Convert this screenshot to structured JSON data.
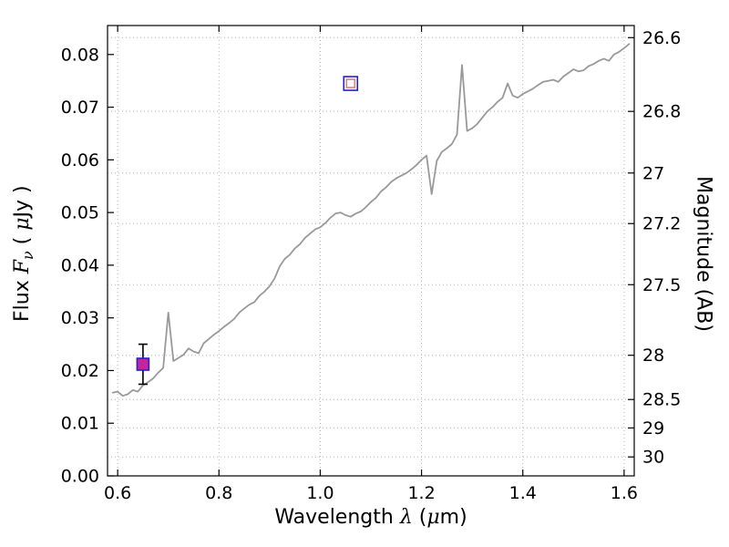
{
  "chart_data": {
    "type": "line",
    "title": "",
    "xlabel_text": "Wavelength λ (μm)",
    "ylabel_left_text": "Flux Fν ( μJy )",
    "ylabel_right_text": "Magnitude (AB)",
    "labels": {
      "xlabel": {
        "t1": "Wavelength ",
        "t2": "λ",
        "t3": " (",
        "t4": "μ",
        "t5": "m)"
      },
      "ylabel": {
        "t1": "Flux ",
        "t2": "F",
        "t3": "ν",
        "t4": " ( ",
        "t5": "μ",
        "t6": "Jy )"
      },
      "ylabel_right": "Magnitude (AB)"
    },
    "xlim": [
      0.58,
      1.62
    ],
    "ylim": [
      0,
      0.0855
    ],
    "grid": true,
    "legend": "none",
    "x_ticks": [
      0.6,
      0.8,
      1.0,
      1.2,
      1.4,
      1.6
    ],
    "x_tick_labels": [
      "0.6",
      "0.8",
      "1.0",
      "1.2",
      "1.4",
      "1.6"
    ],
    "left_ticks": [
      0.0,
      0.01,
      0.02,
      0.03,
      0.04,
      0.05,
      0.06,
      0.07,
      0.08
    ],
    "left_tick_labels": [
      "0.00",
      "0.01",
      "0.02",
      "0.03",
      "0.04",
      "0.05",
      "0.06",
      "0.07",
      "0.08"
    ],
    "right_ticks": [
      {
        "label": "26.6",
        "mag": 26.6,
        "flux": 0.0832
      },
      {
        "label": "26.8",
        "mag": 26.8,
        "flux": 0.0692
      },
      {
        "label": "27",
        "mag": 27.0,
        "flux": 0.0575
      },
      {
        "label": "27.2",
        "mag": 27.2,
        "flux": 0.0479
      },
      {
        "label": "27.5",
        "mag": 27.5,
        "flux": 0.0363
      },
      {
        "label": "28",
        "mag": 28.0,
        "flux": 0.0229
      },
      {
        "label": "28.5",
        "mag": 28.5,
        "flux": 0.0145
      },
      {
        "label": "29",
        "mag": 29.0,
        "flux": 0.0091
      },
      {
        "label": "30",
        "mag": 30.0,
        "flux": 0.0036
      }
    ],
    "style": {
      "line_color": "#999999",
      "grid_color": "#b5b5b5",
      "frame_color": "#000000",
      "background": "#ffffff",
      "error_color": "#000000"
    },
    "series": [
      {
        "name": "model-spectrum",
        "color": "#999999",
        "x": [
          0.59,
          0.6,
          0.61,
          0.62,
          0.63,
          0.64,
          0.65,
          0.66,
          0.67,
          0.68,
          0.69,
          0.7,
          0.71,
          0.72,
          0.73,
          0.74,
          0.75,
          0.76,
          0.77,
          0.78,
          0.79,
          0.8,
          0.81,
          0.82,
          0.83,
          0.84,
          0.85,
          0.86,
          0.87,
          0.88,
          0.89,
          0.9,
          0.91,
          0.92,
          0.93,
          0.94,
          0.95,
          0.96,
          0.97,
          0.98,
          0.99,
          1.0,
          1.01,
          1.02,
          1.03,
          1.04,
          1.05,
          1.06,
          1.07,
          1.08,
          1.09,
          1.1,
          1.11,
          1.12,
          1.13,
          1.14,
          1.15,
          1.16,
          1.17,
          1.18,
          1.19,
          1.2,
          1.21,
          1.22,
          1.23,
          1.24,
          1.25,
          1.26,
          1.27,
          1.28,
          1.29,
          1.3,
          1.31,
          1.32,
          1.33,
          1.34,
          1.35,
          1.36,
          1.37,
          1.38,
          1.39,
          1.4,
          1.41,
          1.42,
          1.43,
          1.44,
          1.45,
          1.46,
          1.47,
          1.48,
          1.49,
          1.5,
          1.51,
          1.52,
          1.53,
          1.54,
          1.55,
          1.56,
          1.57,
          1.58,
          1.59,
          1.6,
          1.61
        ],
        "y": [
          0.0158,
          0.016,
          0.0152,
          0.0155,
          0.0163,
          0.016,
          0.0172,
          0.0178,
          0.0185,
          0.0196,
          0.0205,
          0.031,
          0.0218,
          0.0224,
          0.023,
          0.0242,
          0.0236,
          0.0233,
          0.0252,
          0.026,
          0.0268,
          0.0275,
          0.0283,
          0.029,
          0.0298,
          0.031,
          0.0318,
          0.0325,
          0.033,
          0.0342,
          0.035,
          0.036,
          0.0375,
          0.0398,
          0.0412,
          0.042,
          0.0432,
          0.044,
          0.0452,
          0.046,
          0.0468,
          0.0472,
          0.048,
          0.049,
          0.0498,
          0.05,
          0.0495,
          0.0492,
          0.0498,
          0.0502,
          0.051,
          0.052,
          0.0528,
          0.054,
          0.0548,
          0.0558,
          0.0565,
          0.057,
          0.0575,
          0.0582,
          0.059,
          0.06,
          0.0608,
          0.0535,
          0.0598,
          0.0615,
          0.0622,
          0.063,
          0.0648,
          0.078,
          0.0655,
          0.066,
          0.0668,
          0.068,
          0.0692,
          0.07,
          0.071,
          0.0718,
          0.0745,
          0.0722,
          0.0718,
          0.0725,
          0.073,
          0.0735,
          0.0742,
          0.0748,
          0.075,
          0.0752,
          0.0748,
          0.0758,
          0.0765,
          0.0772,
          0.0768,
          0.077,
          0.0778,
          0.0782,
          0.0788,
          0.0792,
          0.0788,
          0.08,
          0.0805,
          0.0812,
          0.082
        ]
      }
    ],
    "points": [
      {
        "name": "observed-photometry-point",
        "x": 0.65,
        "y": 0.0212,
        "yerr": 0.0038,
        "marker": "square",
        "edge_color": "#2222cc",
        "face_color": "#cc2299",
        "size": 13
      },
      {
        "name": "model-photometry-point",
        "x": 1.06,
        "y": 0.0745,
        "marker": "double-open-square",
        "outer_edge": "#2222cc",
        "inner_edge": "#e08080",
        "size": 15
      }
    ]
  }
}
